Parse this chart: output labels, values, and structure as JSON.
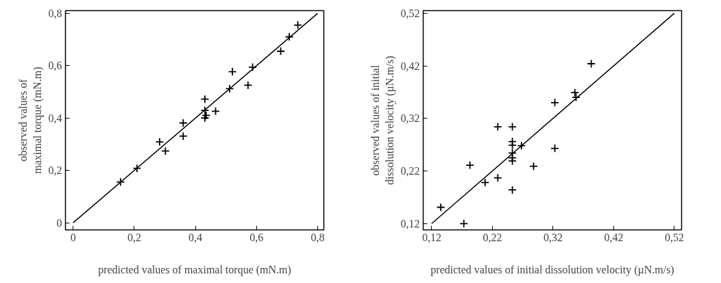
{
  "chart_data": [
    {
      "type": "scatter",
      "xlabel": "predicted values of maximal torque (mN.m)",
      "ylabel": "observed values of maximal torque (mN.m)",
      "xlim": [
        -0.025,
        0.82
      ],
      "ylim": [
        -0.027,
        0.81
      ],
      "xticks": [
        0,
        {
          "value": 0.2,
          "label": "0,2"
        },
        {
          "value": 0.4,
          "label": "0,4"
        },
        {
          "value": 0.6,
          "label": "0,6"
        },
        {
          "value": 0.8,
          "label": "0,8"
        }
      ],
      "yticks": [
        0,
        {
          "value": 0.2,
          "label": "0,2"
        },
        {
          "value": 0.4,
          "label": "0,4"
        },
        {
          "value": 0.6,
          "label": "0,6"
        },
        {
          "value": 0.8,
          "label": "0,8"
        }
      ],
      "grid": false,
      "series": [
        {
          "marker": "cross",
          "color": "#000000",
          "x": [
            0.155,
            0.209,
            0.283,
            0.302,
            0.36,
            0.36,
            0.431,
            0.431,
            0.435,
            0.431,
            0.466,
            0.512,
            0.521,
            0.572,
            0.587,
            0.679,
            0.707,
            0.735
          ],
          "values": [
            0.156,
            0.208,
            0.309,
            0.274,
            0.381,
            0.331,
            0.472,
            0.429,
            0.41,
            0.4,
            0.426,
            0.512,
            0.577,
            0.525,
            0.594,
            0.655,
            0.71,
            0.755
          ]
        },
        {
          "type": "line",
          "marker": "none",
          "color": "#000000",
          "x": [
            0,
            0.8
          ],
          "values": [
            0,
            0.8
          ]
        }
      ]
    },
    {
      "type": "scatter",
      "xlabel": "predicted values of initial dissolution velocity (µN.m/s)",
      "ylabel": "observed values of initial dissolution velocity (µN.m/s)",
      "xlim": [
        0.106,
        0.532
      ],
      "ylim": [
        0.108,
        0.525
      ],
      "xticks": [
        {
          "value": 0.12,
          "label": "0,12"
        },
        {
          "value": 0.22,
          "label": "0,22"
        },
        {
          "value": 0.32,
          "label": "0,32"
        },
        {
          "value": 0.42,
          "label": "0,42"
        },
        {
          "value": 0.52,
          "label": "0,52"
        }
      ],
      "yticks": [
        {
          "value": 0.12,
          "label": "0,12"
        },
        {
          "value": 0.22,
          "label": "0,22"
        },
        {
          "value": 0.32,
          "label": "0,32"
        },
        {
          "value": 0.42,
          "label": "0,42"
        },
        {
          "value": 0.52,
          "label": "0,52"
        }
      ],
      "grid": false,
      "series": [
        {
          "marker": "cross",
          "color": "#000000",
          "x": [
            0.135,
            0.173,
            0.183,
            0.208,
            0.229,
            0.229,
            0.253,
            0.253,
            0.253,
            0.253,
            0.253,
            0.253,
            0.253,
            0.268,
            0.288,
            0.323,
            0.323,
            0.356,
            0.358,
            0.383
          ],
          "values": [
            0.151,
            0.12,
            0.231,
            0.198,
            0.207,
            0.304,
            0.304,
            0.276,
            0.269,
            0.254,
            0.245,
            0.239,
            0.184,
            0.268,
            0.229,
            0.35,
            0.263,
            0.369,
            0.36,
            0.424
          ]
        },
        {
          "type": "line",
          "marker": "none",
          "color": "#000000",
          "x": [
            0.12,
            0.52
          ],
          "values": [
            0.12,
            0.52
          ]
        }
      ]
    }
  ]
}
